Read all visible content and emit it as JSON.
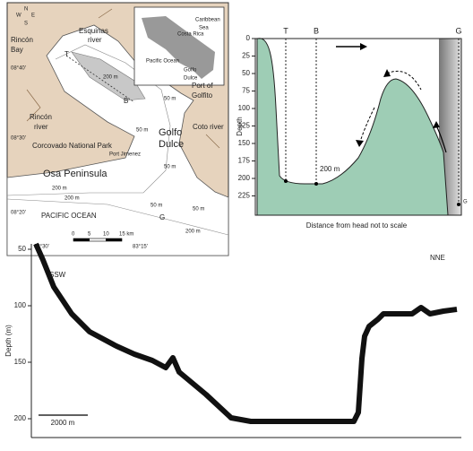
{
  "map": {
    "compass": [
      "N",
      "E",
      "S",
      "W"
    ],
    "labels": [
      "Rincón",
      "Bay",
      "Esquinas",
      "river",
      "T",
      "200 m",
      "B",
      "50 m",
      "Port of",
      "Golfito",
      "Rincón",
      "river",
      "Golfo",
      "Dulce",
      "50 m",
      "Coto river",
      "Corcovado National Park",
      "Port Jimenez",
      "Osa Peninsula",
      "200 m",
      "200 m",
      "50 m",
      "PACIFIC OCEAN",
      "G",
      "50 m",
      "200 m",
      "50 m"
    ],
    "latitudes": [
      "08°40'",
      "08°30'",
      "08°20'"
    ],
    "longitudes": [
      "83°30'",
      "83°15'"
    ],
    "scale_labels": [
      "0",
      "5",
      "10",
      "15 km"
    ],
    "inset_labels": [
      "Caribbean",
      "Sea",
      "Costa Rica",
      "Pacific Ocean",
      "Golfo",
      "Dulce"
    ]
  },
  "section": {
    "y_label": "Depth",
    "yticks": [
      0,
      25,
      50,
      75,
      100,
      125,
      150,
      175,
      200,
      225
    ],
    "stations": [
      "T",
      "B",
      "G"
    ],
    "annotation": "200 m",
    "bottom_station": "G",
    "x_label": "Distance from head not to scale"
  },
  "profile": {
    "y_label": "Depth (m)",
    "yticks": [
      50,
      100,
      150,
      200
    ],
    "start": "SSW",
    "end": "NNE",
    "scale_bar": "2000 m"
  }
}
